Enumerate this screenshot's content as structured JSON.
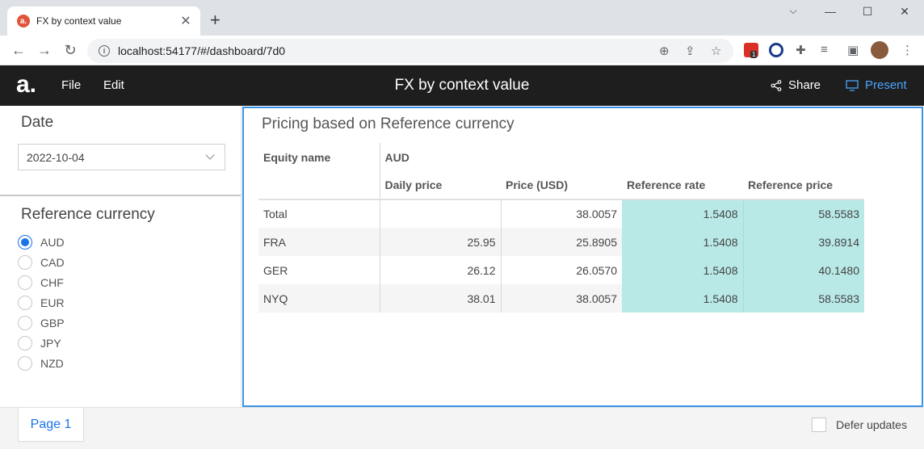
{
  "browser": {
    "tab_title": "FX by context value",
    "tab_favicon": "a.",
    "url": "localhost:54177/#/dashboard/7d0",
    "extension_badge": "1"
  },
  "app": {
    "logo": "a.",
    "menu": [
      "File",
      "Edit"
    ],
    "title": "FX by context value",
    "share_label": "Share",
    "present_label": "Present"
  },
  "filters": {
    "date_title": "Date",
    "date_value": "2022-10-04",
    "currency_title": "Reference currency",
    "currencies": [
      "AUD",
      "CAD",
      "CHF",
      "EUR",
      "GBP",
      "JPY",
      "NZD"
    ],
    "selected_currency": "AUD"
  },
  "pivot": {
    "title": "Pricing based on Reference currency",
    "row_header": "Equity name",
    "column_group": "AUD",
    "columns": [
      "Daily price",
      "Price (USD)",
      "Reference rate",
      "Reference price"
    ],
    "rows": [
      {
        "name": "Total",
        "daily": "",
        "usd": "38.0057",
        "rate": "1.5408",
        "ref": "58.5583"
      },
      {
        "name": "FRA",
        "daily": "25.95",
        "usd": "25.8905",
        "rate": "1.5408",
        "ref": "39.8914"
      },
      {
        "name": "GER",
        "daily": "26.12",
        "usd": "26.0570",
        "rate": "1.5408",
        "ref": "40.1480"
      },
      {
        "name": "NYQ",
        "daily": "38.01",
        "usd": "38.0057",
        "rate": "1.5408",
        "ref": "58.5583"
      }
    ]
  },
  "footer": {
    "page_label": "Page 1",
    "defer_label": "Defer updates"
  },
  "colors": {
    "accent": "#1a73e8",
    "highlight": "#b8e9e6",
    "header_bg": "#1e1e1e"
  }
}
